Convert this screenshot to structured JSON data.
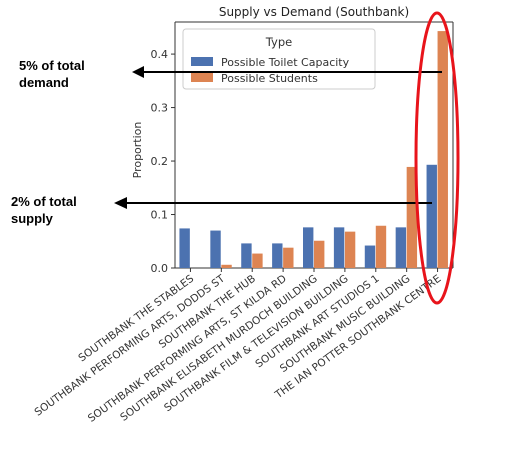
{
  "chart_data": {
    "type": "bar",
    "title": "Supply vs Demand (Southbank)",
    "xlabel": "",
    "ylabel": "Proportion",
    "ylim": [
      0,
      0.46
    ],
    "yticks": [
      "0.0",
      "0.1",
      "0.2",
      "0.3",
      "0.4"
    ],
    "yticks_values": [
      0,
      0.1,
      0.2,
      0.3,
      0.4
    ],
    "grid": false,
    "legend": {
      "title": "Type",
      "placement": "top-left"
    },
    "categories": [
      "SOUTHBANK THE STABLES",
      "SOUTHBANK PERFORMING ARTS, DODDS ST",
      "SOUTHBANK THE HUB",
      "SOUTHBANK PERFORMING ARTS, ST KILDA RD",
      "SOUTHBANK ELISABETH MURDOCH BUILDING",
      "SOUTHBANK FILM & TELEVISION BUILDING",
      "SOUTHBANK ART STUDIOS 1",
      "SOUTHBANK MUSIC BUILDING",
      "THE IAN POTTER SOUTHBANK CENTRE"
    ],
    "series": [
      {
        "name": "Possible Toilet Capacity",
        "color": "#4c72b0",
        "values": [
          0.074,
          0.07,
          0.046,
          0.046,
          0.076,
          0.076,
          0.042,
          0.076,
          0.193
        ]
      },
      {
        "name": "Possible Students",
        "color": "#dd8452",
        "values": [
          0.0,
          0.006,
          0.027,
          0.038,
          0.051,
          0.068,
          0.079,
          0.189,
          0.443
        ]
      }
    ]
  },
  "annotations": [
    {
      "text_line1": "5% of total",
      "text_line2": "demand"
    },
    {
      "text_line1": "2% of total",
      "text_line2": "supply"
    }
  ],
  "highlight_color": "#e8141b"
}
